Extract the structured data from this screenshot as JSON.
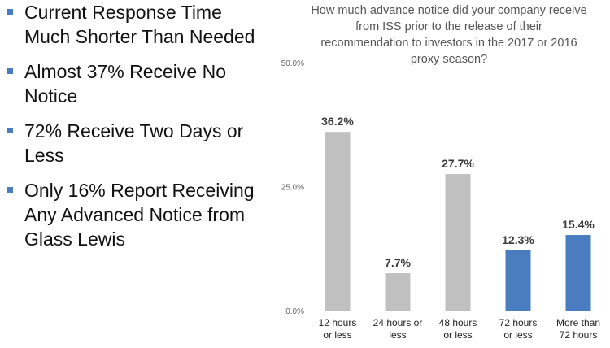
{
  "bullets": [
    "Current Response Time Much Shorter Than Needed",
    "Almost 37% Receive No Notice",
    "72% Receive Two Days or Less",
    "Only 16% Report Receiving Any Advanced Notice from Glass Lewis"
  ],
  "chart_data": {
    "type": "bar",
    "title": "How much advance notice did your company receive from ISS prior to the release of their recommendation to investors in the 2017 or 2016 proxy season?",
    "categories": [
      [
        "12 hours",
        "or less"
      ],
      [
        "24 hours or",
        "less"
      ],
      [
        "48 hours",
        "or less"
      ],
      [
        "72 hours",
        "or less"
      ],
      [
        "More than",
        "72 hours"
      ]
    ],
    "values": [
      36.2,
      7.7,
      27.7,
      12.3,
      15.4
    ],
    "value_labels": [
      "36.2%",
      "7.7%",
      "27.7%",
      "12.3%",
      "15.4%"
    ],
    "colors": [
      "#c0c0c0",
      "#c0c0c0",
      "#c0c0c0",
      "#4a7cc0",
      "#4a7cc0"
    ],
    "ylim": [
      0,
      50
    ],
    "yticks": [
      "50.0%",
      "25.0%",
      "0.0%"
    ],
    "ytick_values": [
      50,
      25,
      0
    ],
    "grid": false,
    "legend": "none"
  }
}
